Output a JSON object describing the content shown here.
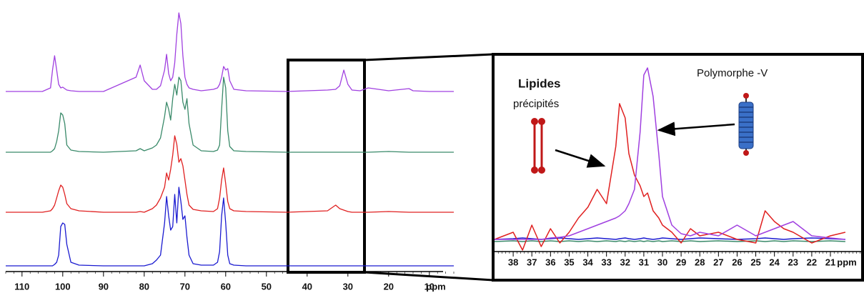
{
  "chart_data": [
    {
      "type": "line",
      "x": [
        114,
        105,
        103,
        102.5,
        102,
        101.5,
        101,
        100.5,
        100,
        99.5,
        99,
        98,
        96,
        90,
        82,
        81,
        80,
        78,
        77,
        76,
        75,
        74.5,
        74,
        73.5,
        73,
        72.5,
        72,
        71.5,
        71,
        70.5,
        70,
        69.5,
        69,
        68,
        66,
        63,
        62,
        61.5,
        61,
        60.5,
        60,
        59.5,
        59,
        58,
        55,
        45,
        35,
        33,
        32,
        31,
        30,
        29,
        27,
        25,
        20,
        15,
        14,
        10,
        4
      ],
      "xlim": [
        114,
        4
      ],
      "xticks": [
        110,
        100,
        90,
        80,
        70,
        60,
        50,
        40,
        30,
        20,
        10
      ],
      "xlabel": "ppm",
      "ylim": [
        0,
        120
      ],
      "series": [
        {
          "color": "#a040e0",
          "values": [
            0,
            0,
            5,
            30,
            50,
            30,
            10,
            5,
            6,
            4,
            2,
            1,
            0,
            0,
            20,
            37,
            15,
            3,
            3,
            8,
            30,
            52,
            25,
            15,
            20,
            40,
            80,
            110,
            95,
            50,
            20,
            10,
            5,
            3,
            1,
            3,
            5,
            10,
            20,
            35,
            30,
            32,
            15,
            3,
            1,
            0,
            2,
            3,
            8,
            30,
            10,
            2,
            1,
            5,
            1,
            4,
            1,
            0,
            0
          ]
        },
        {
          "color": "#3a8a6a",
          "values": [
            0,
            0,
            0,
            2,
            5,
            15,
            30,
            55,
            52,
            40,
            10,
            3,
            1,
            0,
            2,
            5,
            2,
            6,
            10,
            20,
            50,
            70,
            60,
            45,
            75,
            95,
            80,
            105,
            100,
            70,
            60,
            75,
            40,
            10,
            2,
            1,
            3,
            10,
            60,
            105,
            90,
            30,
            8,
            2,
            1,
            0,
            0,
            0,
            0,
            0,
            0,
            0,
            0,
            0,
            1,
            0,
            0,
            0,
            0
          ]
        },
        {
          "color": "#e02020",
          "values": [
            0,
            0,
            2,
            5,
            10,
            20,
            30,
            38,
            35,
            25,
            12,
            5,
            2,
            0,
            0,
            1,
            0,
            5,
            10,
            20,
            35,
            55,
            45,
            60,
            80,
            107,
            95,
            70,
            75,
            65,
            45,
            25,
            10,
            4,
            2,
            1,
            5,
            20,
            45,
            62,
            40,
            15,
            5,
            2,
            1,
            0,
            2,
            10,
            5,
            3,
            1,
            0,
            0,
            0,
            1,
            0,
            0,
            0,
            0
          ]
        },
        {
          "color": "#1a1ad0",
          "values": [
            0,
            0,
            0,
            0,
            2,
            5,
            15,
            55,
            60,
            58,
            30,
            5,
            1,
            0,
            0,
            0,
            0,
            3,
            8,
            15,
            60,
            97,
            70,
            50,
            55,
            100,
            60,
            110,
            90,
            65,
            70,
            40,
            15,
            3,
            1,
            1,
            5,
            20,
            70,
            95,
            60,
            15,
            3,
            1,
            0,
            0,
            0,
            0,
            0,
            0,
            0,
            0,
            0,
            0,
            0,
            0,
            0,
            0,
            0
          ]
        }
      ]
    },
    {
      "type": "line",
      "x": [
        39,
        38,
        37.5,
        37,
        36.5,
        36,
        35.5,
        35,
        34.5,
        34,
        33.5,
        33,
        32.5,
        32.3,
        32,
        31.8,
        31.5,
        31.2,
        31,
        30.8,
        30.5,
        30.2,
        30,
        29.5,
        29,
        28.5,
        28,
        27,
        26,
        25,
        24.5,
        24,
        23.5,
        23,
        22,
        21,
        20.2
      ],
      "xlim": [
        39,
        19.2
      ],
      "xticks": [
        38,
        37,
        36,
        35,
        34,
        33,
        32,
        31,
        30,
        29,
        28,
        27,
        26,
        25,
        24,
        23,
        22,
        21
      ],
      "xlabel": "ppm",
      "ylim": [
        -40,
        260
      ],
      "annotations": [
        "Lipides",
        "précipités",
        "Polymorphe -V"
      ],
      "series": [
        {
          "color": "#3a8a6a",
          "values": [
            -3,
            -2,
            -3,
            -2,
            -3,
            -2,
            -3,
            -2,
            -3,
            -2,
            -3,
            -2,
            -3,
            -2,
            -3,
            -2,
            -3,
            -2,
            -3,
            -2,
            -3,
            -2,
            -3,
            -2,
            -3,
            -2,
            -3,
            -2,
            -3,
            -2,
            -3,
            -2,
            -3,
            -2,
            -3,
            -2,
            -3
          ]
        },
        {
          "color": "#1a1ad0",
          "values": [
            0,
            1,
            2,
            1,
            0,
            1,
            2,
            1,
            0,
            1,
            2,
            1,
            0,
            1,
            2,
            1,
            0,
            1,
            2,
            1,
            0,
            1,
            2,
            1,
            0,
            1,
            2,
            1,
            0,
            1,
            2,
            1,
            0,
            1,
            2,
            1,
            0
          ]
        },
        {
          "color": "#e02020",
          "values": [
            0,
            10,
            -15,
            20,
            -10,
            15,
            -5,
            10,
            30,
            45,
            70,
            50,
            130,
            190,
            170,
            120,
            90,
            75,
            60,
            65,
            40,
            30,
            20,
            10,
            -5,
            15,
            5,
            10,
            0,
            -5,
            40,
            25,
            15,
            10,
            -5,
            5,
            10
          ]
        },
        {
          "color": "#a040e0",
          "values": [
            0,
            0,
            0,
            0,
            0,
            2,
            3,
            5,
            10,
            15,
            20,
            25,
            30,
            33,
            40,
            50,
            70,
            150,
            230,
            240,
            200,
            120,
            60,
            20,
            8,
            5,
            10,
            5,
            20,
            5,
            10,
            15,
            20,
            25,
            5,
            2,
            0
          ]
        }
      ]
    }
  ]
}
